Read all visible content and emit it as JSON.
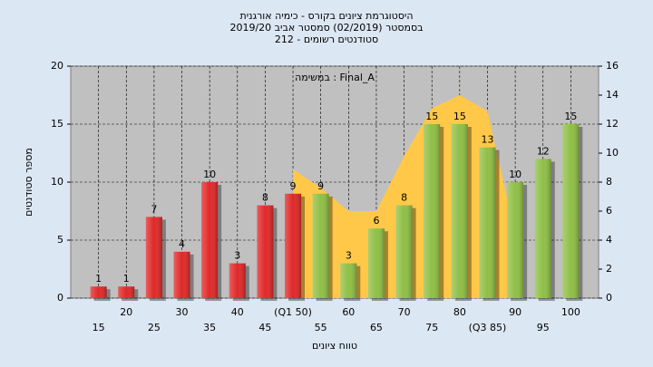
{
  "chart_data": {
    "type": "bar",
    "title": [
      "היסטוגרמת ציונים בקורס - כימיה אורגנית",
      "בסמסטר  (02/2019)  סמסטר אביב 2019/20",
      "סטודנטים רשומים - 212"
    ],
    "annotation": "במשימה : Final_A",
    "x_label": "טווח ציונים",
    "y_label": "מספר סטודנטים",
    "categories": [
      "15",
      "20",
      "25",
      "30",
      "35",
      "40",
      "45",
      "(Q1 50)",
      "55",
      "60",
      "65",
      "70",
      "75",
      "80",
      "(Q3 85)",
      "90",
      "95",
      "100"
    ],
    "values": [
      1,
      1,
      7,
      4,
      10,
      3,
      8,
      9,
      9,
      3,
      6,
      8,
      15,
      15,
      13,
      10,
      12,
      15
    ],
    "colors": [
      "#e02828",
      "#e02828",
      "#e02828",
      "#e02828",
      "#e02828",
      "#e02828",
      "#e02828",
      "#e02828",
      "#8fbf45",
      "#8fbf45",
      "#8fbf45",
      "#8fbf45",
      "#8fbf45",
      "#8fbf45",
      "#8fbf45",
      "#8fbf45",
      "#8fbf45",
      "#8fbf45"
    ],
    "area": {
      "type": "area",
      "color": "#ffc848",
      "axis": "y2",
      "values": [
        null,
        null,
        null,
        null,
        null,
        null,
        null,
        8.9,
        7.6,
        6,
        6,
        9.8,
        13.1,
        14,
        12.9,
        4.5,
        null,
        null
      ]
    },
    "ylim": [
      0,
      20
    ],
    "yticks": [
      0,
      5,
      10,
      15,
      20
    ],
    "y2lim": [
      0,
      16
    ],
    "y2ticks": [
      0,
      2,
      4,
      6,
      8,
      10,
      12,
      14,
      16
    ],
    "grid": true
  }
}
